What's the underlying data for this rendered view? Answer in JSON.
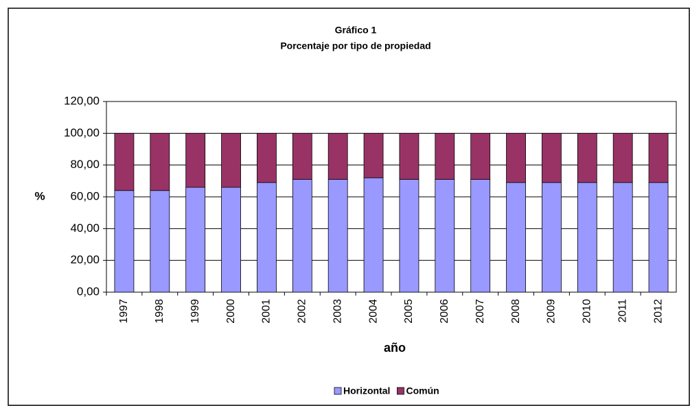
{
  "chart_data": {
    "type": "stacked_bar",
    "title": "Gráfico 1",
    "subtitle": "Porcentaje por tipo de propiedad",
    "x_label": "año",
    "y_label": "%",
    "categories": [
      "1997",
      "1998",
      "1999",
      "2000",
      "2001",
      "2002",
      "2003",
      "2004",
      "2005",
      "2006",
      "2007",
      "2008",
      "2009",
      "2010",
      "2011",
      "2012"
    ],
    "series": [
      {
        "name": "Horizontal",
        "color": "#9999ff",
        "values": [
          64,
          64,
          66,
          66,
          69,
          71,
          71,
          72,
          71,
          71,
          71,
          69,
          69,
          69,
          69,
          69
        ]
      },
      {
        "name": "Común",
        "color": "#993366",
        "values": [
          36,
          36,
          34,
          34,
          31,
          29,
          29,
          28,
          29,
          29,
          29,
          31,
          31,
          31,
          31,
          31
        ]
      }
    ],
    "ylim": [
      0,
      120
    ],
    "yticks": [
      {
        "value": 0,
        "label": "0,00"
      },
      {
        "value": 20,
        "label": "20,00"
      },
      {
        "value": 40,
        "label": "40,00"
      },
      {
        "value": 60,
        "label": "60,00"
      },
      {
        "value": 80,
        "label": "80,00"
      },
      {
        "value": 100,
        "label": "100,00"
      },
      {
        "value": 120,
        "label": "120,00"
      }
    ],
    "grid": true,
    "legend": "bottom"
  }
}
